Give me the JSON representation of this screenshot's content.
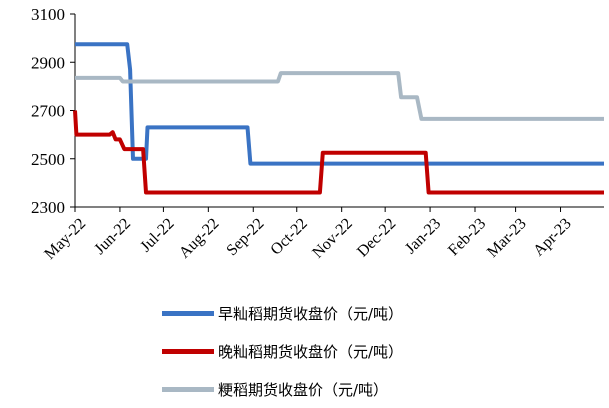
{
  "chart_data": {
    "type": "line",
    "title": "",
    "xlabel": "",
    "ylabel": "",
    "x_range": [
      "2022-05-01",
      "2023-05-01"
    ],
    "ylim": [
      2300,
      3100
    ],
    "y_ticks": [
      2300,
      2500,
      2700,
      2900,
      3100
    ],
    "x_tick_labels": [
      "May-22",
      "Jun-22",
      "Jul-22",
      "Aug-22",
      "Sep-22",
      "Oct-22",
      "Nov-22",
      "Dec-22",
      "Jan-23",
      "Feb-23",
      "Mar-23",
      "Apr-23"
    ],
    "x_tick_dates": [
      "2022-05-01",
      "2022-06-01",
      "2022-07-01",
      "2022-08-01",
      "2022-09-01",
      "2022-10-01",
      "2022-11-01",
      "2022-12-01",
      "2023-01-01",
      "2023-02-01",
      "2023-03-01",
      "2023-04-01"
    ],
    "grid": false,
    "legend_position": "bottom",
    "series": [
      {
        "name": "早籼稻期货收盘价（元/吨）",
        "color": "#3a73c4",
        "points": [
          [
            "2022-05-01",
            2975
          ],
          [
            "2022-06-06",
            2975
          ],
          [
            "2022-06-08",
            2870
          ],
          [
            "2022-06-10",
            2500
          ],
          [
            "2022-06-16",
            2500
          ],
          [
            "2022-06-19",
            2500
          ],
          [
            "2022-06-20",
            2630
          ],
          [
            "2022-08-28",
            2630
          ],
          [
            "2022-08-30",
            2480
          ],
          [
            "2023-05-01",
            2480
          ]
        ]
      },
      {
        "name": "晚籼稻期货收盘价（元/吨）",
        "color": "#c00000",
        "points": [
          [
            "2022-05-01",
            2700
          ],
          [
            "2022-05-02",
            2600
          ],
          [
            "2022-05-25",
            2600
          ],
          [
            "2022-05-27",
            2610
          ],
          [
            "2022-05-29",
            2580
          ],
          [
            "2022-06-01",
            2580
          ],
          [
            "2022-06-04",
            2540
          ],
          [
            "2022-06-17",
            2540
          ],
          [
            "2022-06-19",
            2360
          ],
          [
            "2022-10-17",
            2360
          ],
          [
            "2022-10-19",
            2525
          ],
          [
            "2022-12-29",
            2525
          ],
          [
            "2022-12-31",
            2360
          ],
          [
            "2023-05-01",
            2360
          ]
        ]
      },
      {
        "name": "粳稻期货收盘价（元/吨）",
        "color": "#a9b8c4",
        "points": [
          [
            "2022-05-01",
            2835
          ],
          [
            "2022-06-01",
            2835
          ],
          [
            "2022-06-03",
            2820
          ],
          [
            "2022-09-18",
            2820
          ],
          [
            "2022-09-20",
            2855
          ],
          [
            "2022-12-10",
            2855
          ],
          [
            "2022-12-12",
            2755
          ],
          [
            "2022-12-23",
            2755
          ],
          [
            "2022-12-26",
            2665
          ],
          [
            "2023-05-01",
            2665
          ]
        ]
      }
    ]
  }
}
